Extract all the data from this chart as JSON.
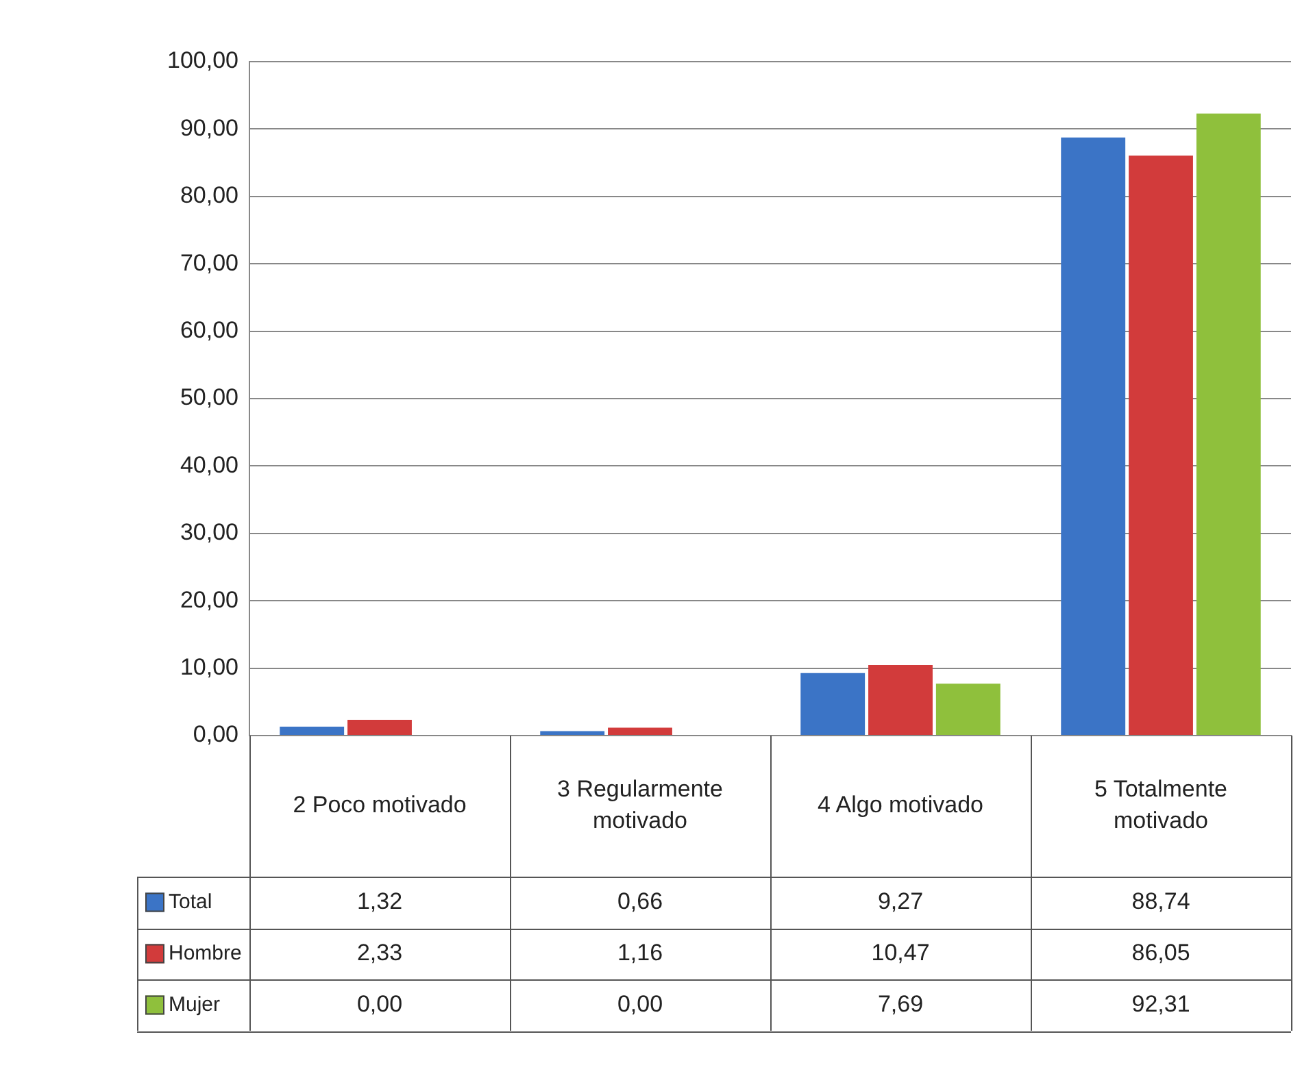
{
  "chart_data": {
    "type": "bar",
    "categories": [
      "2 Poco motivado",
      "3 Regularmente motivado",
      "4 Algo motivado",
      "5 Totalmente motivado"
    ],
    "series": [
      {
        "name": "Total",
        "color": "#3b74c6",
        "values": [
          1.32,
          0.66,
          9.27,
          88.74
        ],
        "value_labels": [
          "1,32",
          "0,66",
          "9,27",
          "88,74"
        ]
      },
      {
        "name": "Hombre",
        "color": "#d23b3b",
        "values": [
          2.33,
          1.16,
          10.47,
          86.05
        ],
        "value_labels": [
          "2,33",
          "1,16",
          "10,47",
          "86,05"
        ]
      },
      {
        "name": "Mujer",
        "color": "#8fc03c",
        "values": [
          0,
          0,
          7.69,
          92.31
        ],
        "value_labels": [
          "0,00",
          "0,00",
          "7,69",
          "92,31"
        ]
      }
    ],
    "ylim": [
      0,
      100
    ],
    "yticks": [
      {
        "value": 0,
        "label": "0,00"
      },
      {
        "value": 10,
        "label": "10,00"
      },
      {
        "value": 20,
        "label": "20,00"
      },
      {
        "value": 30,
        "label": "30,00"
      },
      {
        "value": 40,
        "label": "40,00"
      },
      {
        "value": 50,
        "label": "50,00"
      },
      {
        "value": 60,
        "label": "60,00"
      },
      {
        "value": 70,
        "label": "70,00"
      },
      {
        "value": 80,
        "label": "80,00"
      },
      {
        "value": 90,
        "label": "90,00"
      },
      {
        "value": 100,
        "label": "100,00"
      }
    ],
    "grid": "y",
    "legend": "bottom"
  }
}
